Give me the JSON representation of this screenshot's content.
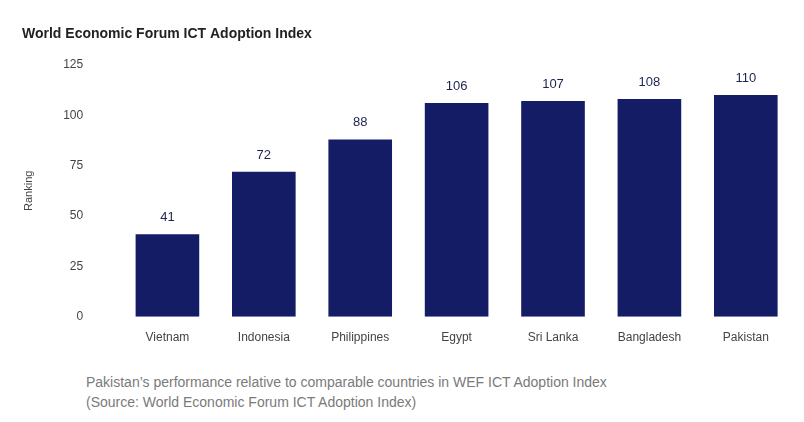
{
  "chart_data": {
    "type": "bar",
    "title": "World Economic Forum ICT Adoption Index",
    "y_label": "Ranking",
    "categories": [
      "Vietnam",
      "Indonesia",
      "Philippines",
      "Egypt",
      "Sri Lanka",
      "Bangladesh",
      "Pakistan"
    ],
    "values": [
      41,
      72,
      88,
      106,
      107,
      108,
      110
    ],
    "color": "#141c66",
    "ylim": [
      0,
      125
    ],
    "yticks": [
      0,
      25,
      50,
      75,
      100,
      125
    ],
    "grid": false,
    "data_labels": true,
    "caption": [
      "Pakistan’s performance relative to comparable countries in WEF ICT Adoption Index",
      "(Source: World Economic Forum ICT Adoption Index)"
    ]
  }
}
